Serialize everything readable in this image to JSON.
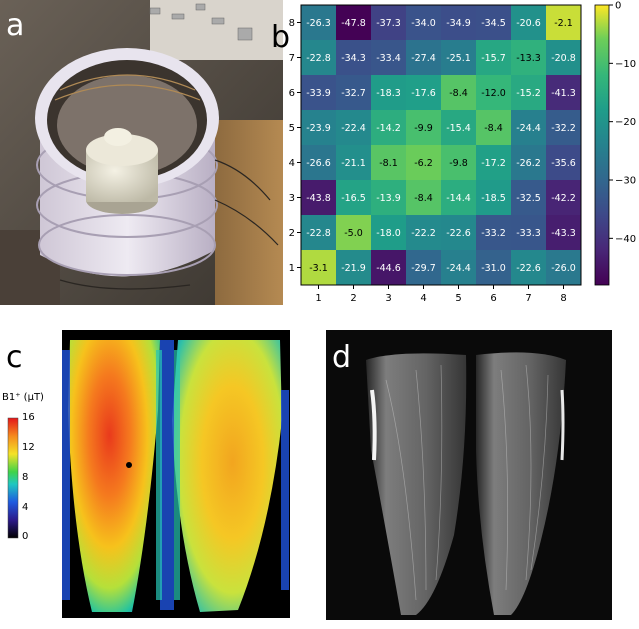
{
  "panels": {
    "a": {
      "label": "a"
    },
    "b": {
      "label": "b"
    },
    "c": {
      "label": "c",
      "colorbar_title": "B1⁺ (µT)",
      "colorbar_ticks": [
        "16",
        "12",
        "8",
        "4",
        "0"
      ]
    },
    "d": {
      "label": "d"
    }
  },
  "chart_data": [
    {
      "type": "heatmap",
      "title": "",
      "xlabel": "",
      "ylabel": "",
      "x_ticks": [
        1,
        2,
        3,
        4,
        5,
        6,
        7,
        8
      ],
      "y_ticks": [
        1,
        2,
        3,
        4,
        5,
        6,
        7,
        8
      ],
      "colorbar_ticks": [
        0,
        -10,
        -20,
        -30,
        -40
      ],
      "vmin": -48,
      "vmax": 0,
      "colormap": "viridis",
      "rows": [
        {
          "y": 8,
          "values": [
            -26.3,
            -47.8,
            -37.3,
            -34.0,
            -34.9,
            -34.5,
            -20.6,
            -2.1
          ],
          "labels": [
            "-26.3",
            "-47.8",
            "-37.3",
            "-34.0",
            "-34.9",
            "-34.5",
            "-20.6",
            "-2.1"
          ]
        },
        {
          "y": 7,
          "values": [
            -22.8,
            -34.3,
            -33.4,
            -27.4,
            -25.1,
            -15.7,
            -13.3,
            -20.8
          ],
          "labels": [
            "-22.8",
            "-34.3",
            "-33.4",
            "-27.4",
            "-25.1",
            "-15.7",
            "-13.3",
            "-20.8"
          ]
        },
        {
          "y": 6,
          "values": [
            -33.9,
            -32.7,
            -18.3,
            -17.6,
            -8.4,
            -12.0,
            -15.2,
            -41.3
          ],
          "labels": [
            "-33.9",
            "-32.7",
            "-18.3",
            "-17.6",
            "-8.4",
            "-12.0",
            "-15.2",
            "-41.3"
          ]
        },
        {
          "y": 5,
          "values": [
            -23.9,
            -22.4,
            -14.2,
            -9.9,
            -15.4,
            -8.4,
            -24.4,
            -32.2
          ],
          "labels": [
            "-23.9",
            "-22.4",
            "-14.2",
            "-9.9",
            "-15.4",
            "-8.4",
            "-24.4",
            "-32.2"
          ]
        },
        {
          "y": 4,
          "values": [
            -26.6,
            -21.1,
            -8.1,
            -6.2,
            -9.8,
            -17.2,
            -26.2,
            -35.6
          ],
          "labels": [
            "-26.6",
            "-21.1",
            "-8.1",
            "-6.2",
            "-9.8",
            "-17.2",
            "-26.2",
            "-35.6"
          ]
        },
        {
          "y": 3,
          "values": [
            -43.8,
            -16.5,
            -13.9,
            -8.4,
            -14.4,
            -18.5,
            -32.5,
            -42.2
          ],
          "labels": [
            "-43.8",
            "-16.5",
            "-13.9",
            "-8.4",
            "-14.4",
            "-18.5",
            "-32.5",
            "-42.2"
          ]
        },
        {
          "y": 2,
          "values": [
            -22.8,
            -5.0,
            -18.0,
            -22.2,
            -22.6,
            -33.2,
            -33.3,
            -43.3
          ],
          "labels": [
            "-22.8",
            "-5.0",
            "-18.0",
            "-22.2",
            "-22.6",
            "-33.2",
            "-33.3",
            "-43.3"
          ]
        },
        {
          "y": 1,
          "values": [
            -3.1,
            -21.9,
            -44.6,
            -29.7,
            -24.4,
            -31.0,
            -22.6,
            -26.0
          ],
          "labels": [
            "-3.1",
            "-21.9",
            "-44.6",
            "-29.7",
            "-24.4",
            "-31.0",
            "-22.6",
            "-26.0"
          ]
        }
      ]
    }
  ]
}
